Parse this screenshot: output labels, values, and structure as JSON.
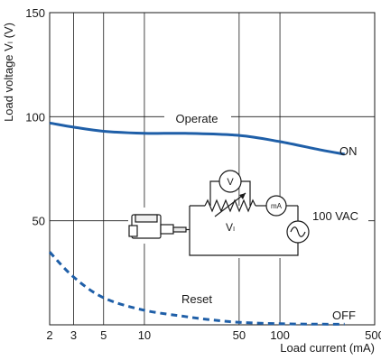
{
  "chart_data": {
    "type": "line",
    "x_scale": "log",
    "xlabel": "Load current (mA)",
    "ylabel": "Load voltage Vₗ (V)",
    "xlim": [
      2,
      500
    ],
    "ylim": [
      0,
      150
    ],
    "x_ticks": [
      2,
      3,
      5,
      10,
      50,
      100,
      500
    ],
    "y_ticks": [
      50,
      100,
      150
    ],
    "grid": true,
    "series": [
      {
        "name": "ON",
        "style": "solid",
        "color": "#1f5fa8",
        "x": [
          2,
          3,
          5,
          10,
          20,
          50,
          100,
          200,
          300
        ],
        "y": [
          97,
          95,
          93,
          92,
          92,
          91,
          88,
          84,
          82
        ]
      },
      {
        "name": "OFF",
        "style": "dashed",
        "color": "#1f5fa8",
        "x": [
          2,
          3,
          5,
          10,
          20,
          30,
          50,
          100,
          200,
          300
        ],
        "y": [
          35,
          23,
          13,
          7,
          4,
          2.5,
          1.2,
          0.5,
          0.3,
          0.3
        ]
      }
    ],
    "annotations": {
      "operate": "Operate",
      "reset": "Reset"
    }
  },
  "diagram": {
    "source": "100 VAC",
    "load_label": "Vₗ",
    "meter_v": "V",
    "meter_ma": "mA"
  }
}
